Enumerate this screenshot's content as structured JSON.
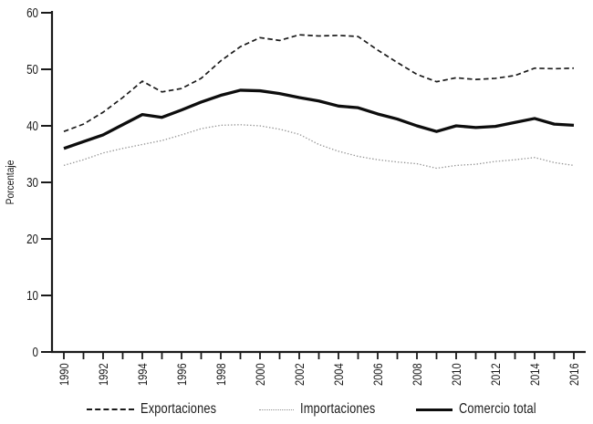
{
  "figure": {
    "background": "#ffffff",
    "axis_color": "#1a1a1a",
    "text_color": "#1a1a1a"
  },
  "chart_data": {
    "type": "line",
    "title": "",
    "xlabel": "",
    "ylabel": "Porcentaje",
    "ylim": [
      0,
      60
    ],
    "yticks": [
      0,
      10,
      20,
      30,
      40,
      50,
      60
    ],
    "x_label_every": 2,
    "grid": false,
    "legend_position": "bottom",
    "x": [
      1990,
      1991,
      1992,
      1993,
      1994,
      1995,
      1996,
      1997,
      1998,
      1999,
      2000,
      2001,
      2002,
      2003,
      2004,
      2005,
      2006,
      2007,
      2008,
      2009,
      2010,
      2011,
      2012,
      2013,
      2014,
      2015,
      2016
    ],
    "series": [
      {
        "name": "Exportaciones",
        "style": "dashed",
        "color": "#1a1a1a",
        "width": 1.7,
        "values": [
          39.0,
          40.3,
          42.4,
          45.0,
          47.9,
          46.0,
          46.6,
          48.4,
          51.5,
          54.0,
          55.6,
          55.1,
          56.1,
          55.9,
          56.0,
          55.8,
          53.4,
          51.2,
          49.1,
          47.8,
          48.5,
          48.2,
          48.4,
          48.9,
          50.2,
          50.1,
          50.2
        ]
      },
      {
        "name": "Importaciones",
        "style": "dotted",
        "color": "#949494",
        "width": 1.3,
        "values": [
          33.0,
          34.0,
          35.2,
          36.0,
          36.7,
          37.4,
          38.4,
          39.5,
          40.1,
          40.2,
          40.0,
          39.4,
          38.5,
          36.7,
          35.5,
          34.6,
          34.0,
          33.6,
          33.3,
          32.5,
          33.0,
          33.2,
          33.7,
          34.0,
          34.4,
          33.5,
          33.0
        ]
      },
      {
        "name": "Comercio total",
        "style": "solid",
        "color": "#0d0d0d",
        "width": 3.3,
        "values": [
          36.0,
          37.2,
          38.4,
          40.2,
          42.0,
          41.5,
          42.8,
          44.2,
          45.4,
          46.3,
          46.2,
          45.7,
          45.0,
          44.4,
          43.5,
          43.2,
          42.1,
          41.2,
          40.0,
          39.0,
          40.0,
          39.7,
          39.9,
          40.6,
          41.3,
          40.3,
          40.1
        ]
      }
    ]
  }
}
